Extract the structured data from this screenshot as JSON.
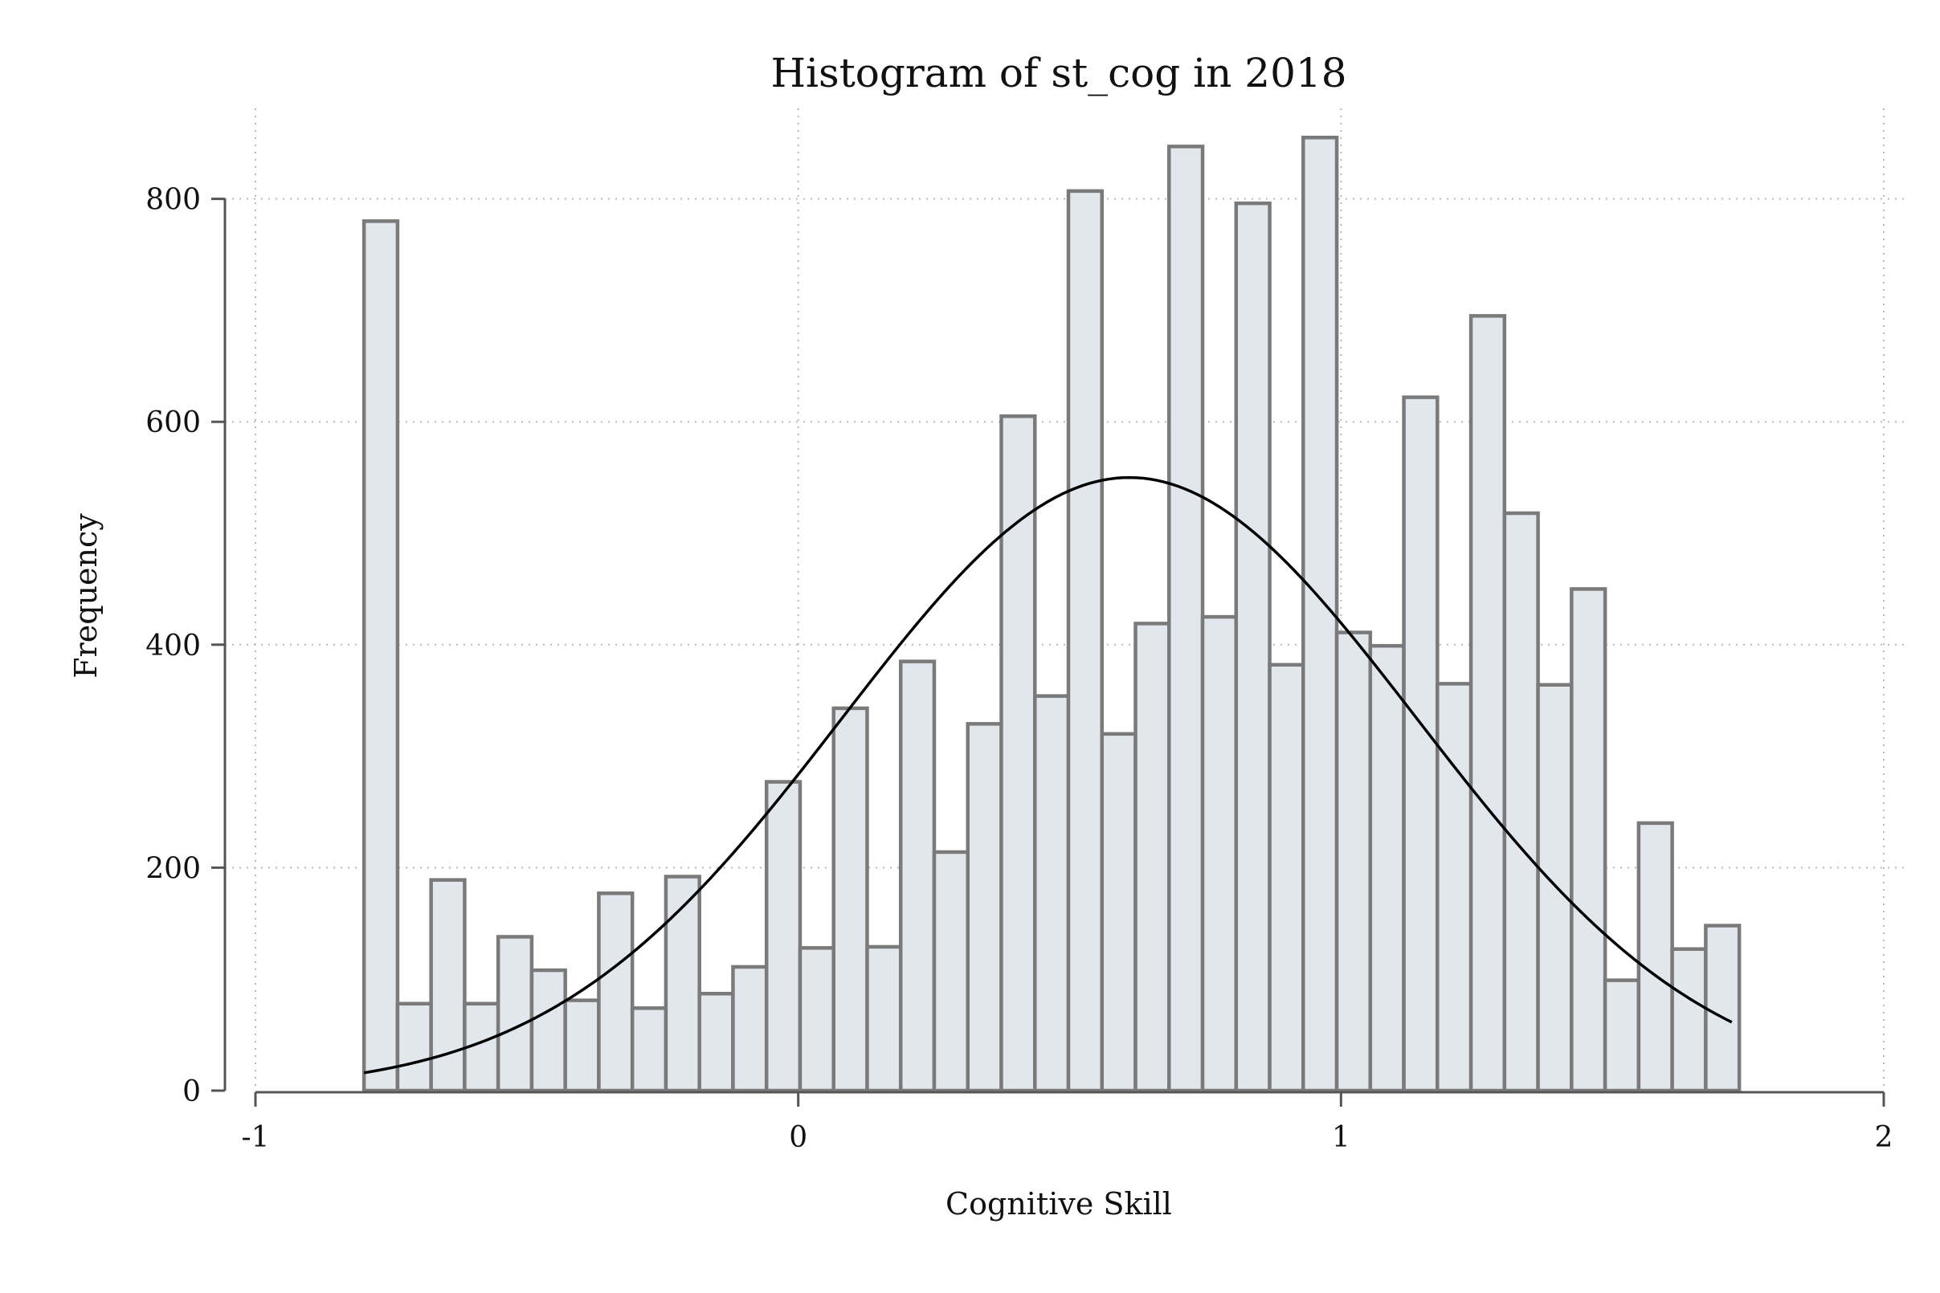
{
  "chart_data": {
    "type": "bar",
    "title": "Histogram of st_cog in 2018",
    "xlabel": "Cognitive Skill",
    "ylabel": "Frequency",
    "xlim": [
      -1,
      2
    ],
    "ylim": [
      0,
      850
    ],
    "x_ticks": [
      -1,
      0,
      1,
      2
    ],
    "x_tick_labels": [
      "-1",
      "0",
      "1",
      "2"
    ],
    "y_ticks": [
      0,
      200,
      400,
      600,
      800
    ],
    "y_tick_labels": [
      "0",
      "200",
      "400",
      "600",
      "800"
    ],
    "grid": true,
    "bin_start": -0.8,
    "bin_width": 0.0618,
    "values": [
      780,
      78,
      189,
      78,
      138,
      108,
      81,
      177,
      74,
      192,
      87,
      111,
      277,
      128,
      343,
      129,
      385,
      214,
      329,
      605,
      354,
      807,
      320,
      419,
      847,
      425,
      796,
      382,
      855,
      411,
      399,
      622,
      365,
      695,
      518,
      364,
      450,
      99,
      240,
      127,
      148
    ],
    "series": [
      {
        "type": "normal-density-overlay",
        "mean": 0.61,
        "sd": 0.53,
        "peak": 550,
        "x_range": [
          -0.8,
          1.72
        ]
      }
    ],
    "colors": {
      "bar_fill": "#e2e7ee",
      "bar_edge": "#7a7a7a",
      "curve": "#000000"
    }
  }
}
